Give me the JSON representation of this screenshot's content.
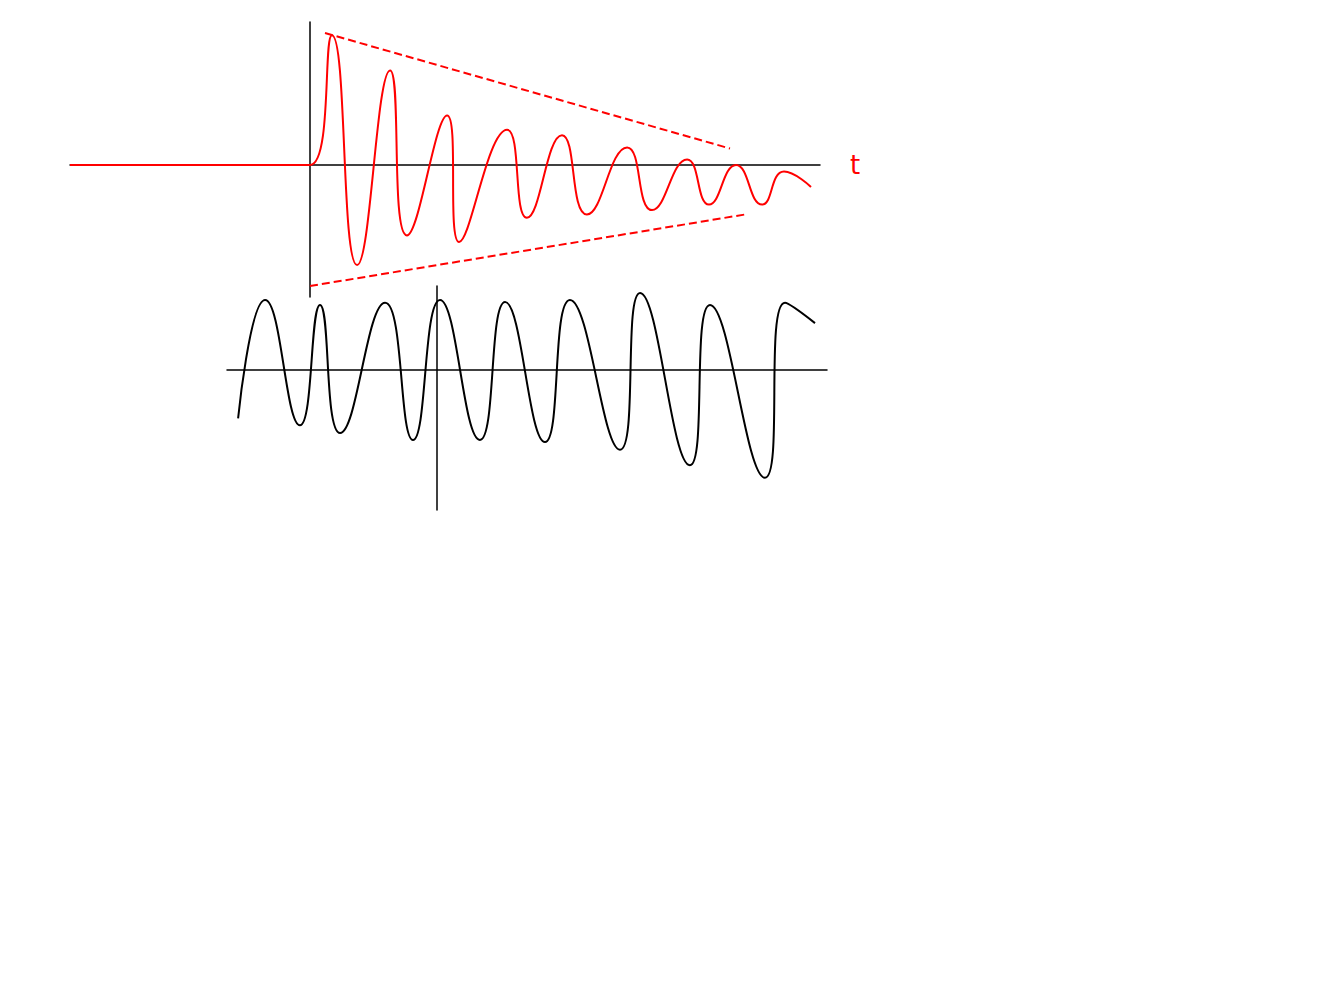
{
  "chart_data": [
    {
      "type": "line",
      "x_label": "t",
      "xlim": [
        -8,
        17
      ],
      "ylim": [
        -1.2,
        1.3
      ],
      "tick_labels": false,
      "grid": false,
      "series": [
        {
          "color": "#ff0000",
          "line_style": "solid",
          "x": [
            -8,
            -4,
            0,
            0.73,
            1.57,
            2.67,
            3.23,
            4.57,
            4.97,
            6.57,
            7.23,
            8.4,
            9.23,
            10.57,
            11.4,
            12.57,
            13.3,
            14.2,
            15.07,
            15.8,
            16.7
          ],
          "values": [
            0,
            0,
            0,
            1.18,
            -0.91,
            0.86,
            -0.64,
            0.45,
            -0.7,
            0.32,
            -0.48,
            0.27,
            -0.45,
            0.16,
            -0.41,
            0.05,
            -0.36,
            0.0,
            -0.36,
            -0.06,
            -0.2
          ]
        },
        {
          "color": "#ff0000",
          "line_style": "dashed",
          "x": [
            0.5,
            14.0
          ],
          "values": [
            1.2,
            0.15
          ]
        },
        {
          "color": "#ff0000",
          "line_style": "dashed",
          "x": [
            0.0,
            14.5
          ],
          "values": [
            -1.1,
            -0.45
          ]
        }
      ]
    },
    {
      "type": "line",
      "xlim": [
        -7,
        13
      ],
      "ylim": [
        -2,
        1.2
      ],
      "tick_labels": false,
      "grid": false,
      "series": [
        {
          "color": "#000000",
          "line_style": "solid",
          "x": [
            -6.63,
            -5.73,
            -4.57,
            -3.9,
            -3.23,
            -1.73,
            -0.8,
            0.1,
            1.43,
            2.27,
            3.6,
            4.43,
            6.1,
            6.77,
            8.43,
            9.1,
            10.93,
            11.6,
            12.6
          ],
          "values": [
            -0.69,
            1.0,
            -0.79,
            0.93,
            -0.9,
            0.96,
            -1.0,
            1.0,
            -1.0,
            0.97,
            -1.03,
            1.0,
            -1.14,
            1.1,
            -1.36,
            0.93,
            -1.54,
            0.96,
            0.67
          ]
        }
      ]
    }
  ]
}
